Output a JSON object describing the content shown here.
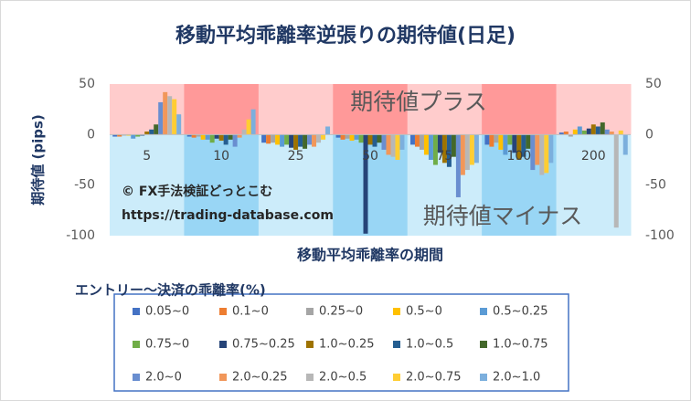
{
  "chart_data": {
    "type": "bar",
    "title": "移動平均乖離率逆張りの期待値(日足)",
    "y_label": "期待値 (pips)",
    "x_label": "移動平均乖離率の期間",
    "legend_title": "エントリー～決済の乖離率(%)",
    "annotations": [
      "期待値プラス",
      "期待値マイナス",
      "© FX手法検証どっとこむ",
      "https://trading-database.com"
    ],
    "categories": [
      "5",
      "10",
      "25",
      "50",
      "75",
      "100",
      "200"
    ],
    "ylim": [
      -100,
      50
    ],
    "yticks": [
      -100,
      -50,
      0,
      50
    ],
    "series": [
      {
        "name": "0.05~0",
        "color": "#4472c4",
        "values": [
          -2,
          -2,
          -8,
          -3,
          -10,
          -10,
          2
        ]
      },
      {
        "name": "0.1~0",
        "color": "#ed7d31",
        "values": [
          -2,
          -3,
          -9,
          -5,
          -12,
          -12,
          3
        ]
      },
      {
        "name": "0.25~0",
        "color": "#a5a5a5",
        "values": [
          -1,
          -2,
          -8,
          -4,
          -15,
          -8,
          -2
        ]
      },
      {
        "name": "0.5~0",
        "color": "#ffc000",
        "values": [
          -1,
          -5,
          -10,
          -6,
          -20,
          -15,
          5
        ]
      },
      {
        "name": "0.5~0.25",
        "color": "#5b9bd5",
        "values": [
          -4,
          -5,
          -12,
          -5,
          -25,
          -20,
          8
        ]
      },
      {
        "name": "0.75~0",
        "color": "#70ad47",
        "values": [
          -2,
          -8,
          -10,
          -8,
          -30,
          -10,
          4
        ]
      },
      {
        "name": "0.75~0.25",
        "color": "#264478",
        "values": [
          -1,
          -4,
          -13,
          -98,
          -18,
          -18,
          6
        ]
      },
      {
        "name": "1.0~0.25",
        "color": "#9e7300",
        "values": [
          3,
          -6,
          -15,
          -10,
          -28,
          -25,
          10
        ]
      },
      {
        "name": "1.0~0.5",
        "color": "#255e91",
        "values": [
          5,
          -10,
          -12,
          -12,
          -32,
          -22,
          8
        ]
      },
      {
        "name": "1.0~0.75",
        "color": "#43682b",
        "values": [
          10,
          -5,
          -14,
          -8,
          -22,
          -14,
          12
        ]
      },
      {
        "name": "2.0~0",
        "color": "#698ed0",
        "values": [
          32,
          -12,
          -10,
          -15,
          -62,
          -35,
          5
        ]
      },
      {
        "name": "2.0~0.25",
        "color": "#f1975a",
        "values": [
          42,
          -3,
          -12,
          -20,
          -40,
          -30,
          3
        ]
      },
      {
        "name": "2.0~0.5",
        "color": "#b7b7b7",
        "values": [
          38,
          5,
          -8,
          -22,
          -35,
          -40,
          -92
        ]
      },
      {
        "name": "2.0~0.75",
        "color": "#ffcd33",
        "values": [
          35,
          15,
          -5,
          -25,
          -30,
          -38,
          4
        ]
      },
      {
        "name": "2.0~1.0",
        "color": "#7cafdd",
        "values": [
          20,
          25,
          8,
          -15,
          -28,
          -28,
          -20
        ]
      }
    ]
  }
}
